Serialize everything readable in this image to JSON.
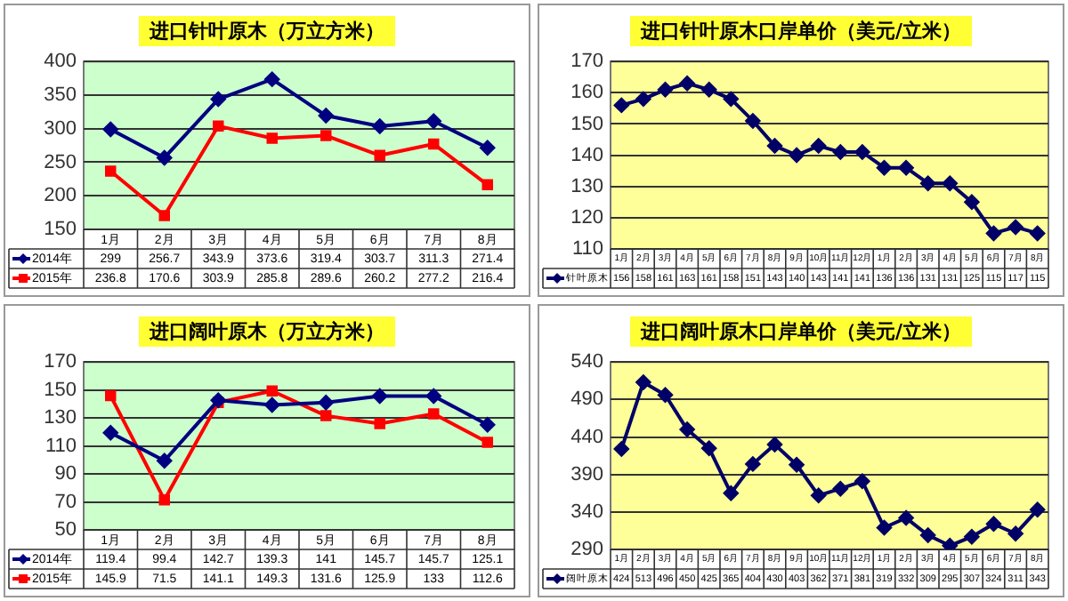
{
  "chart_data": [
    {
      "type": "line",
      "title": "进口针叶原木（万立方米）",
      "categories": [
        "1月",
        "2月",
        "3月",
        "4月",
        "5月",
        "6月",
        "7月",
        "8月"
      ],
      "ylim": [
        150,
        400
      ],
      "yticks": [
        150,
        200,
        250,
        300,
        350,
        400
      ],
      "grid": "y",
      "legend": "bottom",
      "data_labels": true,
      "series": [
        {
          "name": "2014年",
          "color": "#000080",
          "marker": "diamond",
          "values": [
            299,
            256.7,
            343.9,
            373.6,
            319.4,
            303.7,
            311.3,
            271.4
          ]
        },
        {
          "name": "2015年",
          "color": "#ff0000",
          "marker": "square",
          "values": [
            236.8,
            170.6,
            303.9,
            285.8,
            289.6,
            260.2,
            277.2,
            216.4
          ]
        }
      ]
    },
    {
      "type": "line",
      "title": "进口针叶原木口岸单价（美元/立米）",
      "categories": [
        "1月",
        "2月",
        "3月",
        "4月",
        "5月",
        "6月",
        "7月",
        "8月",
        "9月",
        "10月",
        "11月",
        "12月",
        "1月",
        "2月",
        "3月",
        "4月",
        "5月",
        "6月",
        "7月",
        "8月"
      ],
      "ylim": [
        110,
        170
      ],
      "yticks": [
        110,
        120,
        130,
        140,
        150,
        160,
        170
      ],
      "grid": "y",
      "legend": "bottom",
      "data_labels": true,
      "series": [
        {
          "name": "针叶原木",
          "color": "#000066",
          "marker": "diamond",
          "values": [
            156,
            158,
            161,
            163,
            161,
            158,
            151,
            143,
            140,
            143,
            141,
            141,
            136,
            136,
            131,
            131,
            125,
            115,
            117,
            115
          ]
        }
      ]
    },
    {
      "type": "line",
      "title": "进口阔叶原木（万立方米）",
      "categories": [
        "1月",
        "2月",
        "3月",
        "4月",
        "5月",
        "6月",
        "7月",
        "8月"
      ],
      "ylim": [
        50,
        170
      ],
      "yticks": [
        50,
        70,
        90,
        110,
        130,
        150,
        170
      ],
      "grid": "y",
      "legend": "bottom",
      "data_labels": true,
      "series": [
        {
          "name": "2014年",
          "color": "#000080",
          "marker": "diamond",
          "values": [
            119.4,
            99.4,
            142.7,
            139.3,
            141,
            145.7,
            145.7,
            125.1
          ]
        },
        {
          "name": "2015年",
          "color": "#ff0000",
          "marker": "square",
          "values": [
            145.9,
            71.5,
            141.1,
            149.3,
            131.6,
            125.9,
            133,
            112.6
          ]
        }
      ]
    },
    {
      "type": "line",
      "title": "进口阔叶原木口岸单价（美元/立米）",
      "categories": [
        "1月",
        "2月",
        "3月",
        "4月",
        "5月",
        "6月",
        "7月",
        "8月",
        "9月",
        "10月",
        "11月",
        "12月",
        "1月",
        "2月",
        "3月",
        "4月",
        "5月",
        "6月",
        "7月",
        "8月"
      ],
      "ylim": [
        290,
        540
      ],
      "yticks": [
        290,
        340,
        390,
        440,
        490,
        540
      ],
      "grid": "y",
      "legend": "bottom",
      "data_labels": true,
      "series": [
        {
          "name": "阔叶原木",
          "color": "#000066",
          "marker": "diamond",
          "values": [
            424,
            513,
            496,
            450,
            425,
            365,
            404,
            430,
            403,
            362,
            371,
            381,
            319,
            332,
            309,
            295,
            307,
            324,
            311,
            343
          ]
        }
      ]
    }
  ]
}
